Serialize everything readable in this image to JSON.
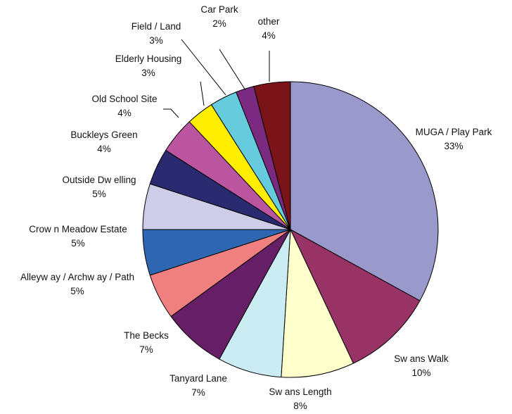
{
  "chart_data": {
    "type": "pie",
    "slices": [
      {
        "name": "MUGA / Play Park",
        "pct_label": "33%",
        "value": 33,
        "color": "#9999CC"
      },
      {
        "name": "Sw ans Walk",
        "pct_label": "10%",
        "value": 10,
        "color": "#993366"
      },
      {
        "name": "Sw ans Length",
        "pct_label": "8%",
        "value": 8,
        "color": "#FFFFCC"
      },
      {
        "name": "Tanyard Lane",
        "pct_label": "7%",
        "value": 7,
        "color": "#CCECF4"
      },
      {
        "name": "The Becks",
        "pct_label": "7%",
        "value": 7,
        "color": "#661F66"
      },
      {
        "name": "Alleyw ay / Archw ay / Path",
        "pct_label": "5%",
        "value": 5,
        "color": "#F08080"
      },
      {
        "name": "Crow n Meadow  Estate",
        "pct_label": "5%",
        "value": 5,
        "color": "#2E66B2"
      },
      {
        "name": "Outside Dw elling",
        "pct_label": "5%",
        "value": 5,
        "color": "#CFCCE8"
      },
      {
        "name": "Buckleys Green",
        "pct_label": "4%",
        "value": 4,
        "color": "#2A2A70"
      },
      {
        "name": "Old School Site",
        "pct_label": "4%",
        "value": 4,
        "color": "#BB55A0"
      },
      {
        "name": "Elderly Housing",
        "pct_label": "3%",
        "value": 3,
        "color": "#FFEE00"
      },
      {
        "name": "Field / Land",
        "pct_label": "3%",
        "value": 3,
        "color": "#66CCDD"
      },
      {
        "name": "Car Park",
        "pct_label": "2%",
        "value": 2,
        "color": "#7A2A80"
      },
      {
        "name": "other",
        "pct_label": "4%",
        "value": 4,
        "color": "#7A1418"
      }
    ]
  }
}
